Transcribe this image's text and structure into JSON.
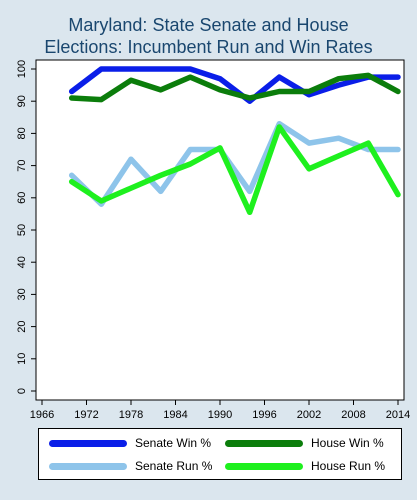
{
  "chart_data": {
    "type": "line",
    "title": "Maryland: State Senate and House",
    "subtitle": "Elections: Incumbent Run and Win Rates",
    "xlabel": "",
    "ylabel": "",
    "xlim": [
      1966,
      2014
    ],
    "ylim": [
      0,
      100
    ],
    "x_ticks": [
      1966,
      1972,
      1978,
      1984,
      1990,
      1996,
      2002,
      2008,
      2014
    ],
    "y_ticks": [
      0,
      10,
      20,
      30,
      40,
      50,
      60,
      70,
      80,
      90,
      100
    ],
    "grid": false,
    "legend_position": "bottom",
    "x": [
      1970,
      1974,
      1978,
      1982,
      1986,
      1990,
      1994,
      1998,
      2002,
      2006,
      2010,
      2014
    ],
    "series": [
      {
        "name": "Senate Win %",
        "color": "#0a1ee8",
        "values": [
          93,
          100,
          100,
          100,
          100,
          97,
          90,
          97.5,
          92,
          95,
          97.5,
          97.5
        ]
      },
      {
        "name": "House Win %",
        "color": "#0b7d0b",
        "values": [
          91,
          90.5,
          96.5,
          93.5,
          97.5,
          93.5,
          91,
          93,
          93,
          97,
          98,
          93
        ]
      },
      {
        "name": "Senate Run %",
        "color": "#8ec4ea",
        "values": [
          67,
          58,
          72,
          62,
          75,
          75,
          62,
          83,
          77,
          78.5,
          75,
          75
        ]
      },
      {
        "name": "House Run %",
        "color": "#1ef01e",
        "values": [
          65,
          59,
          63,
          67,
          70.5,
          75.5,
          55.5,
          82,
          69,
          73,
          77,
          61
        ]
      }
    ]
  }
}
